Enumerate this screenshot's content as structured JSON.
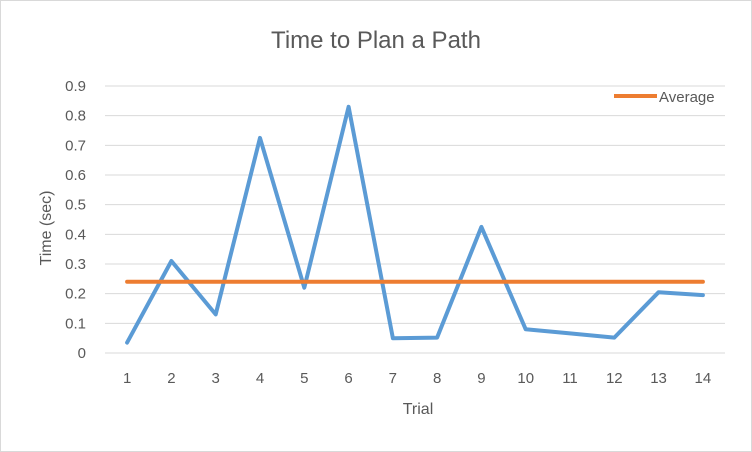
{
  "chart_data": {
    "type": "line",
    "title": "Time to Plan a Path",
    "xlabel": "Trial",
    "ylabel": "Time (sec)",
    "categories": [
      "1",
      "2",
      "3",
      "4",
      "5",
      "6",
      "7",
      "8",
      "9",
      "10",
      "11",
      "12",
      "13",
      "14"
    ],
    "yticks": [
      "0",
      "0.1",
      "0.2",
      "0.3",
      "0.4",
      "0.5",
      "0.6",
      "0.7",
      "0.8",
      "0.9"
    ],
    "ylim": [
      0,
      0.9
    ],
    "grid": true,
    "legend_position": "top-right",
    "series": [
      {
        "values": [
          0.035,
          0.31,
          0.13,
          0.725,
          0.22,
          0.83,
          0.05,
          0.052,
          0.425,
          0.08,
          0.066,
          0.052,
          0.205,
          0.195
        ],
        "color": "#5b9bd5"
      },
      {
        "name": "Average",
        "values": [
          0.24,
          0.24,
          0.24,
          0.24,
          0.24,
          0.24,
          0.24,
          0.24,
          0.24,
          0.24,
          0.24,
          0.24,
          0.24,
          0.24
        ],
        "color": "#ed7d31"
      }
    ]
  }
}
